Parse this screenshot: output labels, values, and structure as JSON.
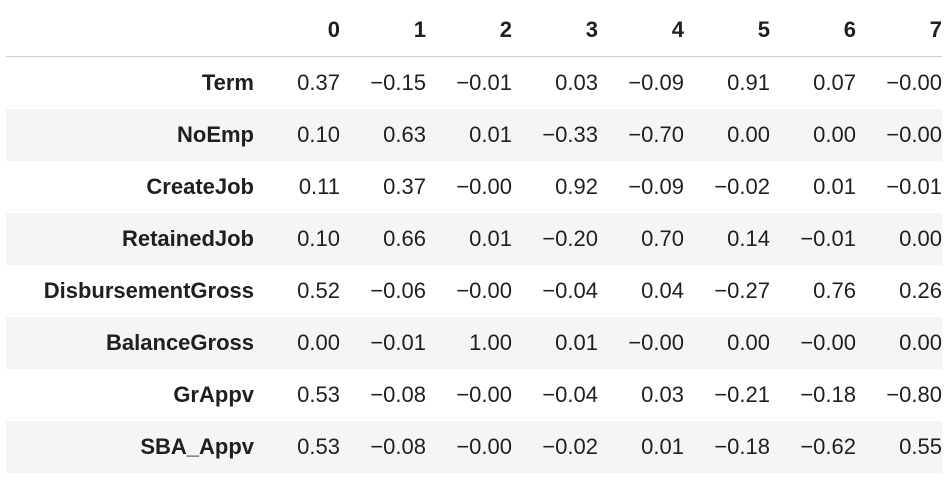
{
  "table": {
    "columns": [
      "0",
      "1",
      "2",
      "3",
      "4",
      "5",
      "6",
      "7"
    ],
    "rows": [
      {
        "label": "Term",
        "values": [
          "0.37",
          "−0.15",
          "−0.01",
          "0.03",
          "−0.09",
          "0.91",
          "0.07",
          "−0.00"
        ]
      },
      {
        "label": "NoEmp",
        "values": [
          "0.10",
          "0.63",
          "0.01",
          "−0.33",
          "−0.70",
          "0.00",
          "0.00",
          "−0.00"
        ]
      },
      {
        "label": "CreateJob",
        "values": [
          "0.11",
          "0.37",
          "−0.00",
          "0.92",
          "−0.09",
          "−0.02",
          "0.01",
          "−0.01"
        ]
      },
      {
        "label": "RetainedJob",
        "values": [
          "0.10",
          "0.66",
          "0.01",
          "−0.20",
          "0.70",
          "0.14",
          "−0.01",
          "0.00"
        ]
      },
      {
        "label": "DisbursementGross",
        "values": [
          "0.52",
          "−0.06",
          "−0.00",
          "−0.04",
          "0.04",
          "−0.27",
          "0.76",
          "0.26"
        ]
      },
      {
        "label": "BalanceGross",
        "values": [
          "0.00",
          "−0.01",
          "1.00",
          "0.01",
          "−0.00",
          "0.00",
          "−0.00",
          "0.00"
        ]
      },
      {
        "label": "GrAppv",
        "values": [
          "0.53",
          "−0.08",
          "−0.00",
          "−0.04",
          "0.03",
          "−0.21",
          "−0.18",
          "−0.80"
        ]
      },
      {
        "label": "SBA_Appv",
        "values": [
          "0.53",
          "−0.08",
          "−0.00",
          "−0.02",
          "0.01",
          "−0.18",
          "−0.62",
          "0.55"
        ]
      }
    ]
  }
}
